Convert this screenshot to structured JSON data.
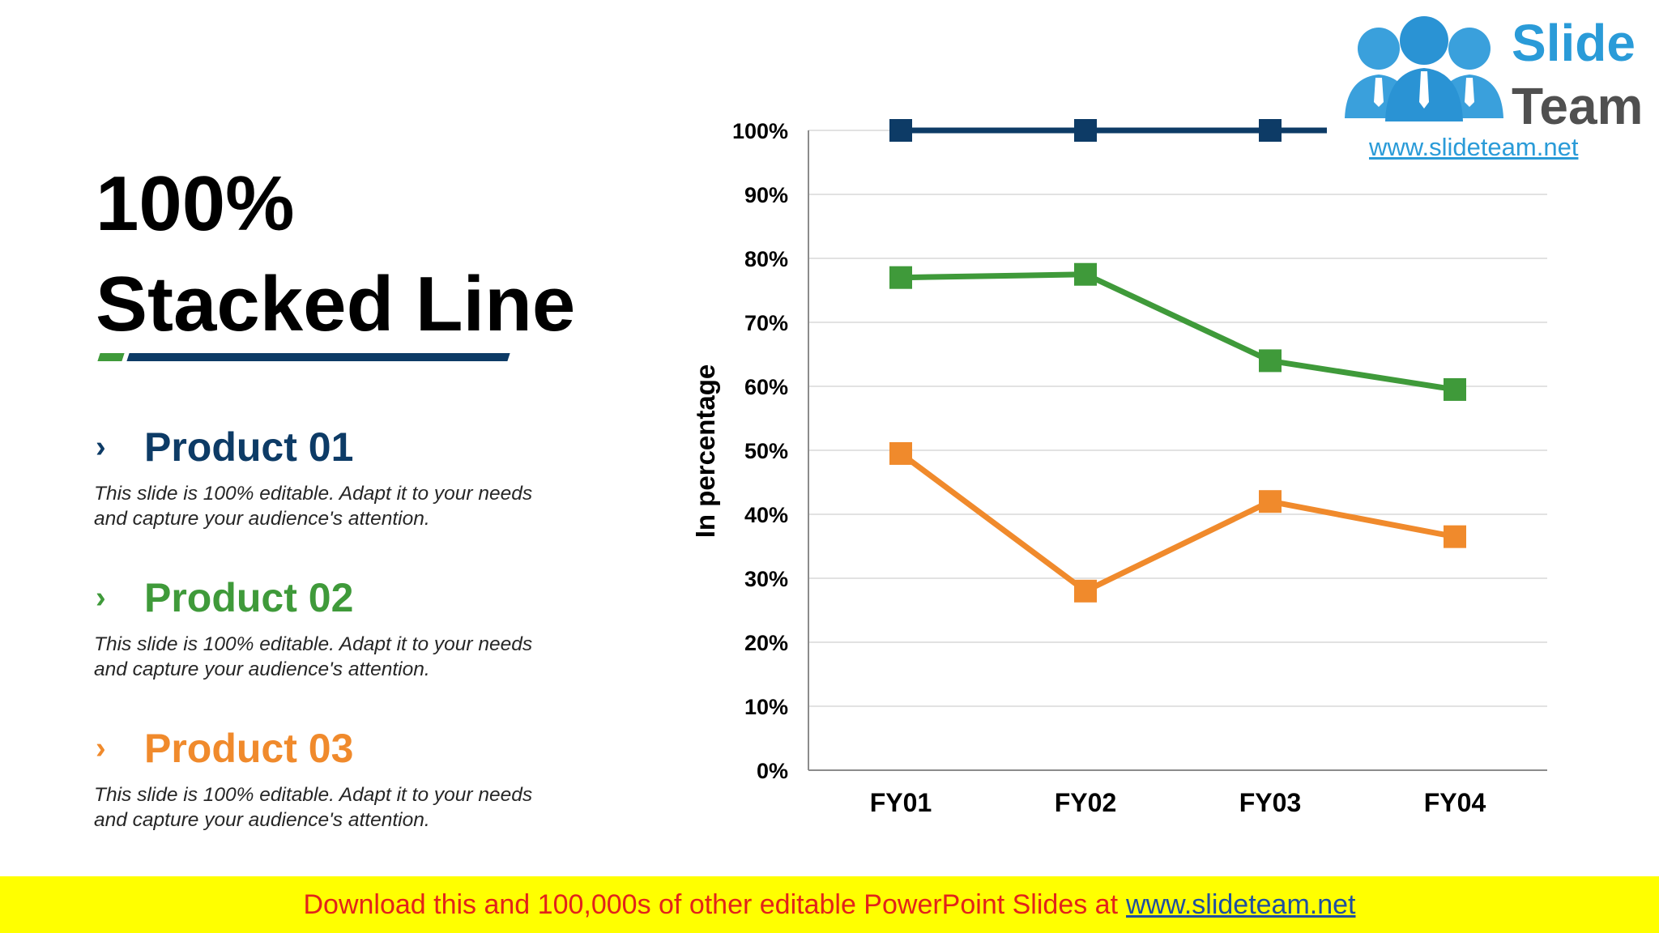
{
  "slide": {
    "title_line1": "100%",
    "title_line2": "Stacked Line"
  },
  "products": [
    {
      "name": "Product 01",
      "color": "#0d3b66",
      "chevron": "›",
      "desc_line1": "This slide is 100% editable. Adapt it to your needs",
      "desc_line2": "and capture your audience's attention."
    },
    {
      "name": "Product 02",
      "color": "#3f9a3a",
      "chevron": "›",
      "desc_line1": "This slide is 100% editable. Adapt it to your needs",
      "desc_line2": "and capture your audience's attention."
    },
    {
      "name": "Product 03",
      "color": "#f08a2c",
      "chevron": "›",
      "desc_line1": "This slide is 100% editable. Adapt it to your needs",
      "desc_line2": "and capture your audience's attention."
    }
  ],
  "chart_data": {
    "type": "line",
    "stacked": "100%",
    "categories": [
      "FY01",
      "FY02",
      "FY03",
      "FY04"
    ],
    "ylabel": "In percentage",
    "ylim": [
      0,
      100
    ],
    "yticks": [
      "0%",
      "10%",
      "20%",
      "30%",
      "40%",
      "50%",
      "60%",
      "70%",
      "80%",
      "90%",
      "100%"
    ],
    "grid": true,
    "legend": "none",
    "series": [
      {
        "color": "#0d3b66",
        "values": [
          100,
          100,
          100,
          100
        ]
      },
      {
        "color": "#3f9a3a",
        "values": [
          77,
          77.5,
          64,
          59.5
        ]
      },
      {
        "color": "#f08a2c",
        "values": [
          49.5,
          28,
          42,
          36.5
        ]
      }
    ]
  },
  "logo": {
    "word1": "Slide",
    "word2": "Team",
    "url": "www.slideteam.net"
  },
  "banner": {
    "text": "Download this and 100,000s of other editable PowerPoint Slides at",
    "link": "www.slideteam.net"
  }
}
